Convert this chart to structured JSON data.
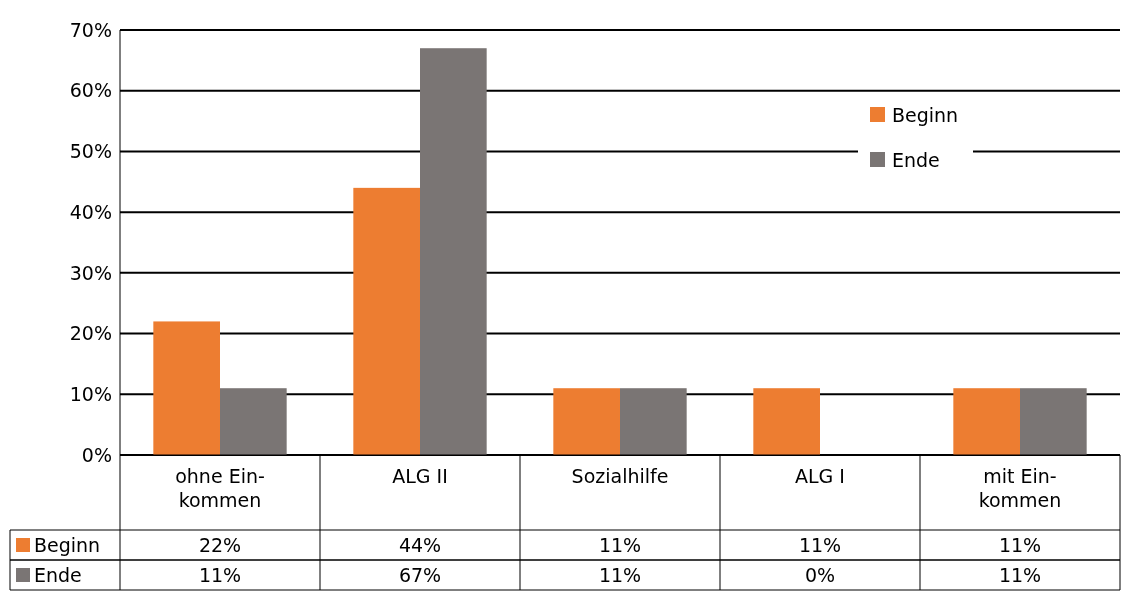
{
  "chart_data": {
    "type": "bar",
    "categories": [
      "ohne Ein-kommen",
      "ALG II",
      "Sozialhilfe",
      "ALG I",
      "mit Ein-kommen"
    ],
    "series": [
      {
        "name": "Beginn",
        "color": "#ed7d31",
        "values": [
          22,
          44,
          11,
          11,
          11
        ],
        "value_labels": [
          "22%",
          "44%",
          "11%",
          "11%",
          "11%"
        ]
      },
      {
        "name": "Ende",
        "color": "#7a7574",
        "values": [
          11,
          67,
          11,
          0,
          11
        ],
        "value_labels": [
          "11%",
          "67%",
          "11%",
          "0%",
          "11%"
        ]
      }
    ],
    "ylim": [
      0,
      70
    ],
    "yticks": [
      {
        "value": 0,
        "label": "0%"
      },
      {
        "value": 10,
        "label": "10%"
      },
      {
        "value": 20,
        "label": "20%"
      },
      {
        "value": 30,
        "label": "30%"
      },
      {
        "value": 40,
        "label": "40%"
      },
      {
        "value": 50,
        "label": "50%"
      },
      {
        "value": 60,
        "label": "60%"
      },
      {
        "value": 70,
        "label": "70%"
      }
    ],
    "grid": "y",
    "legend": "top right"
  }
}
